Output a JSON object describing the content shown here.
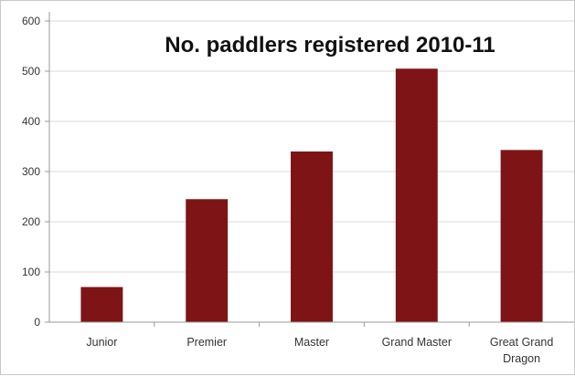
{
  "chart_data": {
    "type": "bar",
    "title": "No. paddlers registered 2010-11",
    "xlabel": "",
    "ylabel": "",
    "categories": [
      "Junior",
      "Premier",
      "Master",
      "Grand Master",
      "Great Grand Dragon"
    ],
    "category_lines": [
      [
        "Junior"
      ],
      [
        "Premier"
      ],
      [
        "Master"
      ],
      [
        "Grand Master"
      ],
      [
        "Great Grand",
        "Dragon"
      ]
    ],
    "values": [
      70,
      245,
      340,
      505,
      343
    ],
    "ylim": [
      0,
      600
    ],
    "yticks": [
      0,
      100,
      200,
      300,
      400,
      500,
      600
    ],
    "grid": true,
    "legend": "none",
    "colors": {
      "bar": "#7e1416",
      "grid": "#d9d9d9",
      "axis": "#9a9a9a"
    }
  }
}
